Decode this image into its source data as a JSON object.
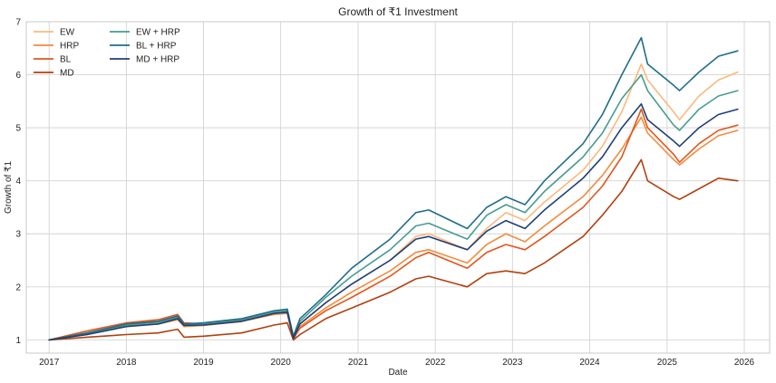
{
  "chart_data": {
    "type": "line",
    "title": "Growth of ₹1 Investment",
    "xlabel": "Date",
    "ylabel": "Growth of ₹1",
    "xlim": [
      "2016-09-15",
      "2026-05-01"
    ],
    "ylim": [
      0.75,
      7.0
    ],
    "x_ticks": [
      "2017",
      "2018",
      "2019",
      "2020",
      "2021",
      "2022",
      "2023",
      "2024",
      "2025",
      "2026"
    ],
    "y_ticks": [
      1,
      2,
      3,
      4,
      5,
      6,
      7
    ],
    "grid": true,
    "legend": {
      "placement": "top-left",
      "columns": 2
    },
    "x": [
      "2017-01",
      "2017-07",
      "2018-01",
      "2018-06",
      "2018-09",
      "2018-10",
      "2019-01",
      "2019-07",
      "2019-12",
      "2020-02",
      "2020-03",
      "2020-04",
      "2020-08",
      "2020-12",
      "2021-06",
      "2021-10",
      "2021-12",
      "2022-06",
      "2022-09",
      "2022-12",
      "2023-03",
      "2023-06",
      "2023-12",
      "2024-03",
      "2024-06",
      "2024-09",
      "2024-10",
      "2025-02",
      "2025-03",
      "2025-06",
      "2025-09",
      "2025-12"
    ],
    "series": [
      {
        "name": "EW",
        "color": "#fdb87b",
        "values": [
          1.0,
          1.15,
          1.3,
          1.36,
          1.44,
          1.3,
          1.3,
          1.38,
          1.5,
          1.52,
          1.02,
          1.3,
          1.7,
          2.05,
          2.5,
          2.95,
          3.0,
          2.7,
          3.1,
          3.4,
          3.25,
          3.6,
          4.2,
          4.65,
          5.3,
          6.2,
          5.9,
          5.3,
          5.15,
          5.6,
          5.9,
          6.05
        ]
      },
      {
        "name": "HRP",
        "color": "#f58a3c",
        "values": [
          1.0,
          1.12,
          1.26,
          1.3,
          1.38,
          1.25,
          1.27,
          1.35,
          1.48,
          1.5,
          1.0,
          1.25,
          1.6,
          1.9,
          2.3,
          2.65,
          2.7,
          2.45,
          2.8,
          3.0,
          2.85,
          3.15,
          3.7,
          4.1,
          4.6,
          5.2,
          4.9,
          4.4,
          4.3,
          4.6,
          4.85,
          4.95
        ]
      },
      {
        "name": "BL",
        "color": "#e2561b",
        "values": [
          1.0,
          1.17,
          1.32,
          1.38,
          1.48,
          1.32,
          1.3,
          1.36,
          1.5,
          1.55,
          1.03,
          1.22,
          1.55,
          1.8,
          2.2,
          2.55,
          2.65,
          2.35,
          2.65,
          2.8,
          2.7,
          2.95,
          3.5,
          3.9,
          4.45,
          5.35,
          5.0,
          4.5,
          4.35,
          4.7,
          4.95,
          5.05
        ]
      },
      {
        "name": "MD",
        "color": "#b2400f",
        "values": [
          1.0,
          1.05,
          1.1,
          1.13,
          1.2,
          1.05,
          1.07,
          1.13,
          1.28,
          1.32,
          1.0,
          1.1,
          1.4,
          1.6,
          1.9,
          2.15,
          2.2,
          2.0,
          2.25,
          2.3,
          2.25,
          2.45,
          2.95,
          3.35,
          3.8,
          4.4,
          4.0,
          3.7,
          3.65,
          3.85,
          4.05,
          4.0
        ]
      },
      {
        "name": "EW + HRP",
        "color": "#479c91",
        "values": [
          1.0,
          1.12,
          1.28,
          1.33,
          1.42,
          1.28,
          1.3,
          1.38,
          1.52,
          1.55,
          1.05,
          1.35,
          1.8,
          2.2,
          2.7,
          3.15,
          3.2,
          2.9,
          3.35,
          3.55,
          3.4,
          3.8,
          4.45,
          4.9,
          5.55,
          6.0,
          5.7,
          5.05,
          4.95,
          5.35,
          5.6,
          5.7
        ]
      },
      {
        "name": "BL + HRP",
        "color": "#1f6e8c",
        "values": [
          1.0,
          1.13,
          1.3,
          1.35,
          1.45,
          1.3,
          1.32,
          1.4,
          1.55,
          1.58,
          1.07,
          1.4,
          1.85,
          2.35,
          2.9,
          3.4,
          3.45,
          3.1,
          3.5,
          3.7,
          3.55,
          4.0,
          4.7,
          5.25,
          6.0,
          6.7,
          6.2,
          5.8,
          5.7,
          6.05,
          6.35,
          6.45
        ]
      },
      {
        "name": "MD + HRP",
        "color": "#1e3f75",
        "values": [
          1.0,
          1.1,
          1.25,
          1.3,
          1.4,
          1.27,
          1.28,
          1.35,
          1.5,
          1.52,
          1.03,
          1.3,
          1.7,
          2.05,
          2.5,
          2.9,
          2.95,
          2.7,
          3.05,
          3.25,
          3.1,
          3.45,
          4.05,
          4.45,
          5.0,
          5.45,
          5.15,
          4.75,
          4.65,
          5.0,
          5.25,
          5.35
        ]
      }
    ]
  }
}
